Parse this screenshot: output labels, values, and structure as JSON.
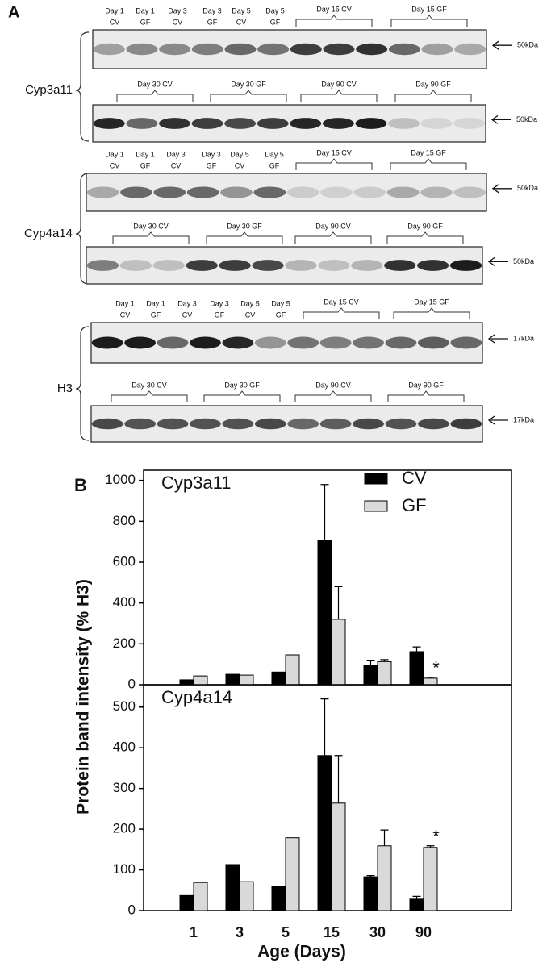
{
  "panel_a": {
    "label": "A",
    "groups": [
      {
        "name": "Cyp3a11",
        "blots": [
          {
            "lanes": [
              {
                "day": "Day 1",
                "group": "CV"
              },
              {
                "day": "Day 1",
                "group": "GF"
              },
              {
                "day": "Day 3",
                "group": "CV"
              },
              {
                "day": "Day 3",
                "group": "GF"
              },
              {
                "day": "Day 5",
                "group": "CV"
              },
              {
                "day": "Day 5",
                "group": "GF"
              }
            ],
            "brackets": [
              "Day 15 CV",
              "Day 15 GF"
            ],
            "size": "50kDa"
          },
          {
            "brackets": [
              "Day 30 CV",
              "Day 30 GF",
              "Day 90 CV",
              "Day 90 GF"
            ],
            "size": "50kDa"
          }
        ]
      },
      {
        "name": "Cyp4a14",
        "blots": [
          {
            "lanes": [
              {
                "day": "Day 1",
                "group": "CV"
              },
              {
                "day": "Day 1",
                "group": "GF"
              },
              {
                "day": "Day 3",
                "group": "CV"
              },
              {
                "day": "Day 3",
                "group": "GF"
              },
              {
                "day": "Day 5",
                "group": "CV"
              },
              {
                "day": "Day 5",
                "group": "GF"
              }
            ],
            "brackets": [
              "Day 15 CV",
              "Day 15 GF"
            ],
            "size": "50kDa"
          },
          {
            "brackets": [
              "Day 30 CV",
              "Day 30 GF",
              "Day 90 CV",
              "Day 90 GF"
            ],
            "size": "50kDa"
          }
        ]
      },
      {
        "name": "H3",
        "blots": [
          {
            "lanes": [
              {
                "day": "Day 1",
                "group": "CV"
              },
              {
                "day": "Day 1",
                "group": "GF"
              },
              {
                "day": "Day 3",
                "group": "CV"
              },
              {
                "day": "Day 3",
                "group": "GF"
              },
              {
                "day": "Day 5",
                "group": "CV"
              },
              {
                "day": "Day 5",
                "group": "GF"
              }
            ],
            "brackets": [
              "Day 15 CV",
              "Day 15 GF"
            ],
            "size": "17kDa"
          },
          {
            "brackets": [
              "Day 30 CV",
              "Day 30 GF",
              "Day 90 CV",
              "Day 90 GF"
            ],
            "size": "17kDa"
          }
        ]
      }
    ]
  },
  "panel_b_label": "B",
  "chart_data": {
    "type": "bar",
    "y_label": "Protein band intensity (% H3)",
    "x_label": "Age (Days)",
    "categories": [
      "1",
      "3",
      "5",
      "15",
      "30",
      "90"
    ],
    "series": [
      {
        "name": "CV",
        "color": "#000000"
      },
      {
        "name": "GF",
        "color": "#d9d9d9"
      }
    ],
    "panels": [
      {
        "title": "Cyp3a11",
        "ylim": [
          0,
          1050
        ],
        "yticks": [
          0,
          200,
          400,
          600,
          800,
          1000
        ],
        "series": [
          {
            "values": [
              24,
              51,
              62,
              707,
              95,
              162
            ],
            "errors": [
              0,
              0,
              0,
              273,
              25,
              23
            ],
            "markers": [
              null,
              null,
              null,
              null,
              null,
              null
            ]
          },
          {
            "values": [
              43,
              47,
              146,
              320,
              113,
              32
            ],
            "errors": [
              0,
              0,
              0,
              160,
              10,
              5
            ],
            "markers": [
              null,
              null,
              null,
              null,
              null,
              "*"
            ]
          }
        ]
      },
      {
        "title": "Cyp4a14",
        "ylim": [
          0,
          555
        ],
        "yticks": [
          0,
          100,
          200,
          300,
          400,
          500
        ],
        "series": [
          {
            "values": [
              37,
              113,
              60,
              381,
              83,
              28
            ],
            "errors": [
              0,
              0,
              0,
              139,
              3,
              7
            ],
            "markers": [
              null,
              null,
              null,
              null,
              null,
              null
            ]
          },
          {
            "values": [
              69,
              71,
              179,
              264,
              159,
              155
            ],
            "errors": [
              0,
              0,
              0,
              117,
              39,
              4
            ],
            "markers": [
              null,
              null,
              null,
              null,
              null,
              "*"
            ]
          }
        ]
      }
    ]
  }
}
